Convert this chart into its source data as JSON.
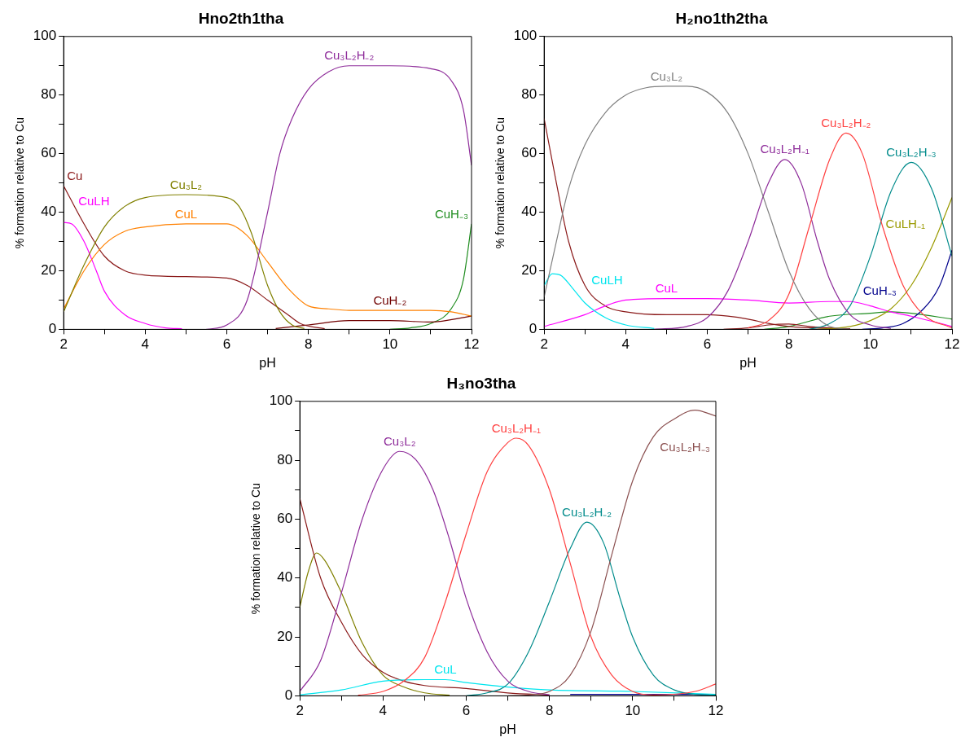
{
  "chart_data": [
    {
      "type": "line",
      "title": "Hno2th1tha",
      "xlabel": "pH",
      "ylabel": "% formation relative to Cu",
      "xlim": [
        2,
        12
      ],
      "ylim": [
        0,
        100
      ],
      "xticks": [
        2,
        {
          "value": 3,
          "label": null
        },
        4,
        {
          "value": 5,
          "label": null
        },
        6,
        {
          "value": 7,
          "label": null
        },
        8,
        {
          "value": 9,
          "label": null
        },
        10,
        {
          "value": 11,
          "label": null
        },
        12
      ],
      "yticks": [
        0,
        {
          "value": 10,
          "label": null
        },
        20,
        {
          "value": 30,
          "label": null
        },
        40,
        {
          "value": 50,
          "label": null
        },
        60,
        {
          "value": 70,
          "label": null
        },
        80,
        {
          "value": 90,
          "label": null
        },
        100
      ],
      "grid": false,
      "legend": false,
      "marker": "none",
      "line_style": "solid",
      "series": [
        {
          "name": "Cu₃L₂H₋₂",
          "color": "#8e2c9a",
          "x": [
            5.5,
            6,
            6.5,
            7,
            7.3,
            7.6,
            8,
            8.5,
            9,
            10,
            11,
            11.5,
            11.8,
            12
          ],
          "values": [
            0,
            1.5,
            10,
            40,
            60,
            72,
            82,
            88,
            90,
            90,
            89,
            85,
            75,
            56
          ]
        },
        {
          "name": "Cu₃L₂",
          "color": "#808000",
          "x": [
            2,
            2.5,
            3,
            3.5,
            4,
            5,
            6,
            6.3,
            6.6,
            7,
            7.3,
            7.6,
            7.9
          ],
          "values": [
            6,
            22,
            35,
            42,
            45,
            46,
            45,
            42,
            33,
            15,
            6,
            1.5,
            0.3
          ]
        },
        {
          "name": "CuL",
          "color": "#ff8000",
          "x": [
            2,
            2.5,
            3,
            3.5,
            4,
            5,
            6,
            6.5,
            7,
            7.5,
            8,
            8.5,
            9,
            10,
            11,
            11.5,
            12
          ],
          "values": [
            7,
            20,
            29,
            33.5,
            35,
            36,
            36,
            32,
            23,
            14,
            8,
            7,
            6.5,
            6.5,
            6.5,
            6,
            4.5
          ]
        },
        {
          "name": "Cu",
          "color": "#8b1a1a",
          "x": [
            2,
            2.5,
            3,
            3.5,
            4,
            5,
            6,
            6.5,
            7,
            7.5,
            7.8,
            8.4
          ],
          "values": [
            49,
            36,
            25,
            20,
            18.5,
            18,
            17.5,
            15,
            10,
            5,
            2,
            0.2
          ]
        },
        {
          "name": "CuLH",
          "color": "#ff00ff",
          "x": [
            2,
            2.2,
            2.5,
            2.8,
            3,
            3.5,
            4,
            4.5,
            4.9
          ],
          "values": [
            36.5,
            36,
            30,
            20,
            13,
            5,
            2,
            0.5,
            0.2
          ]
        },
        {
          "name": "CuH₋₂",
          "color": "#700000",
          "x": [
            7.2,
            8,
            9,
            10,
            11,
            12
          ],
          "values": [
            0.3,
            1.5,
            3,
            3,
            2.5,
            4.5
          ]
        },
        {
          "name": "CuH₋₃",
          "color": "#1e8c1e",
          "x": [
            10,
            10.5,
            11,
            11.5,
            11.8,
            12
          ],
          "values": [
            0,
            0.5,
            2,
            7,
            17,
            36
          ]
        }
      ]
    },
    {
      "type": "line",
      "title": "H₂no1th2tha",
      "xlabel": "pH",
      "ylabel": "% formation relative to Cu",
      "xlim": [
        2,
        12
      ],
      "ylim": [
        0,
        100
      ],
      "xticks": [
        2,
        {
          "value": 3,
          "label": null
        },
        4,
        {
          "value": 5,
          "label": null
        },
        6,
        {
          "value": 7,
          "label": null
        },
        8,
        {
          "value": 9,
          "label": null
        },
        10,
        {
          "value": 11,
          "label": null
        },
        12
      ],
      "yticks": [
        0,
        {
          "value": 10,
          "label": null
        },
        20,
        {
          "value": 30,
          "label": null
        },
        40,
        {
          "value": 50,
          "label": null
        },
        60,
        {
          "value": 70,
          "label": null
        },
        80,
        {
          "value": 90,
          "label": null
        },
        100
      ],
      "grid": false,
      "legend": false,
      "marker": "none",
      "line_style": "solid",
      "series": [
        {
          "name": "Cu₃L₂",
          "color": "#808080",
          "x": [
            2,
            2.3,
            2.6,
            3,
            3.5,
            4,
            4.5,
            5,
            5.5,
            6,
            6.5,
            7,
            7.5,
            8,
            8.5,
            9,
            9.5
          ],
          "values": [
            11,
            30,
            48,
            63,
            74,
            80,
            82.5,
            83,
            83,
            81,
            74,
            60,
            40,
            20,
            7,
            1,
            0
          ]
        },
        {
          "name": "Cu₃L₂H₋₂",
          "color": "#ff4040",
          "x": [
            7,
            7.5,
            8,
            8.5,
            9,
            9.4,
            9.8,
            10.3,
            10.8,
            11.3,
            12
          ],
          "values": [
            0.5,
            3,
            12,
            35,
            58,
            67,
            60,
            35,
            15,
            5,
            0.5
          ]
        },
        {
          "name": "Cu₃L₂H₋₁",
          "color": "#8e2c9a",
          "x": [
            4.7,
            5.5,
            6,
            6.5,
            7,
            7.5,
            7.9,
            8.3,
            8.7,
            9,
            9.5,
            10,
            10.5
          ],
          "values": [
            0,
            1,
            4,
            13,
            30,
            50,
            58,
            50,
            30,
            17,
            5,
            1.5,
            0.3
          ]
        },
        {
          "name": "Cu₃L₂H₋₃",
          "color": "#008b8b",
          "x": [
            8.5,
            9,
            9.5,
            10,
            10.5,
            11,
            11.5,
            12
          ],
          "values": [
            0,
            2,
            8,
            25,
            47,
            57,
            48,
            25
          ]
        },
        {
          "name": "CuLH₋₁",
          "color": "#9a9a00",
          "x": [
            8.7,
            9.5,
            10,
            10.5,
            11,
            11.5,
            12
          ],
          "values": [
            0,
            1,
            3,
            7,
            15,
            28,
            45
          ]
        },
        {
          "name": "CuLH",
          "color": "#00e5ee",
          "x": [
            2,
            2.2,
            2.4,
            2.7,
            3,
            3.5,
            4,
            4.7
          ],
          "values": [
            15,
            19,
            18.5,
            14,
            9,
            4,
            1.5,
            0.3
          ]
        },
        {
          "name": "CuL",
          "color": "#ff00ff",
          "x": [
            2,
            3,
            3.5,
            4,
            5,
            6,
            7,
            8,
            9,
            9.5,
            10,
            10.5,
            11,
            12
          ],
          "values": [
            1,
            5,
            8,
            10,
            10.5,
            10.5,
            10,
            9,
            9.5,
            9.5,
            8,
            6,
            4.5,
            1
          ]
        },
        {
          "name": "CuH₋₃",
          "color": "#00008b",
          "x": [
            9.8,
            10.3,
            10.8,
            11.3,
            11.7,
            12
          ],
          "values": [
            0,
            0.5,
            2,
            7,
            15,
            27
          ]
        },
        {
          "color": "#8b1a1a",
          "x": [
            2,
            2.3,
            2.6,
            3,
            3.5,
            4,
            5,
            6,
            6.5,
            7,
            7.5,
            8,
            9,
            9.5
          ],
          "values": [
            72,
            50,
            30,
            15,
            8,
            6,
            5,
            5,
            4.5,
            3.5,
            2,
            1,
            0.3,
            0.2
          ]
        },
        {
          "color": "#8b1a1a",
          "x": [
            6.4,
            7,
            7.5,
            8,
            8.5,
            9,
            9.5
          ],
          "values": [
            0,
            0.5,
            1.5,
            1.8,
            1,
            0.5,
            0.2
          ]
        },
        {
          "color": "#1e8c1e",
          "x": [
            7.4,
            8,
            9,
            10,
            10.5,
            11,
            12
          ],
          "values": [
            0,
            1,
            4.5,
            5.5,
            6,
            5.5,
            3.5
          ]
        }
      ]
    },
    {
      "type": "line",
      "title": "H₃no3tha",
      "xlabel": "pH",
      "ylabel": "% formation relative to Cu",
      "xlim": [
        2,
        12
      ],
      "ylim": [
        0,
        100
      ],
      "xticks": [
        2,
        {
          "value": 3,
          "label": null
        },
        4,
        {
          "value": 5,
          "label": null
        },
        6,
        {
          "value": 7,
          "label": null
        },
        8,
        {
          "value": 9,
          "label": null
        },
        10,
        {
          "value": 11,
          "label": null
        },
        12
      ],
      "yticks": [
        0,
        {
          "value": 10,
          "label": null
        },
        20,
        {
          "value": 30,
          "label": null
        },
        40,
        {
          "value": 50,
          "label": null
        },
        60,
        {
          "value": 70,
          "label": null
        },
        80,
        {
          "value": 90,
          "label": null
        },
        100
      ],
      "grid": false,
      "legend": false,
      "marker": "none",
      "line_style": "solid",
      "series": [
        {
          "name": "Cu₃L₂H₋₃",
          "color": "#8b5050",
          "x": [
            7,
            7.5,
            8,
            8.5,
            9,
            9.5,
            10,
            10.5,
            11,
            11.5,
            12
          ],
          "values": [
            0,
            0.3,
            1.5,
            7,
            22,
            48,
            73,
            88,
            94,
            97,
            95
          ]
        },
        {
          "name": "Cu₃L₂H₋₁",
          "color": "#ff4040",
          "x": [
            3.4,
            4,
            4.5,
            5,
            5.5,
            6,
            6.5,
            7,
            7.2,
            7.5,
            8,
            8.5,
            9,
            9.5,
            10,
            10.5,
            11.5,
            12
          ],
          "values": [
            0.2,
            1.5,
            5,
            13,
            32,
            55,
            76,
            86,
            87.5,
            85,
            70,
            45,
            20,
            7,
            1.5,
            0.3,
            1.5,
            4
          ]
        },
        {
          "name": "Cu₃L₂",
          "color": "#8e2c9a",
          "x": [
            2,
            2.5,
            3,
            3.5,
            4,
            4.4,
            4.8,
            5.2,
            5.6,
            6,
            6.5,
            7,
            7.5,
            8
          ],
          "values": [
            1.5,
            12,
            35,
            60,
            77,
            83,
            80,
            70,
            53,
            33,
            15,
            5,
            1.5,
            0.3
          ]
        },
        {
          "name": "Cu₃L₂H₋₂",
          "color": "#008b8b",
          "x": [
            6,
            6.5,
            7,
            7.5,
            8,
            8.5,
            8.9,
            9.3,
            9.7,
            10,
            10.5,
            11,
            11.5,
            12
          ],
          "values": [
            0,
            1,
            4,
            15,
            32,
            50,
            59,
            52,
            33,
            20,
            7,
            2,
            0.5,
            0.3
          ]
        },
        {
          "name": "CuL",
          "color": "#00e5ee",
          "x": [
            2,
            3,
            4,
            5,
            5.5,
            6,
            7,
            8,
            10,
            12
          ],
          "values": [
            0.3,
            2,
            5,
            5.5,
            5.5,
            4.5,
            3,
            2,
            1.5,
            0.5
          ]
        },
        {
          "color": "#8b1a1a",
          "x": [
            2,
            2.5,
            3,
            3.5,
            4,
            4.5,
            5,
            6,
            7,
            8
          ],
          "values": [
            67,
            40,
            25,
            14,
            8,
            5,
            3.5,
            2.5,
            1,
            0.3
          ]
        },
        {
          "color": "#808000",
          "x": [
            2,
            2.2,
            2.4,
            2.6,
            3,
            3.5,
            4,
            4.5,
            5,
            5.6
          ],
          "values": [
            30,
            42,
            48.5,
            46,
            35,
            18,
            7,
            3,
            1,
            0.2
          ]
        },
        {
          "color": "#00008b",
          "x": [
            8.5,
            12
          ],
          "values": [
            0.5,
            0.5
          ]
        }
      ]
    }
  ]
}
